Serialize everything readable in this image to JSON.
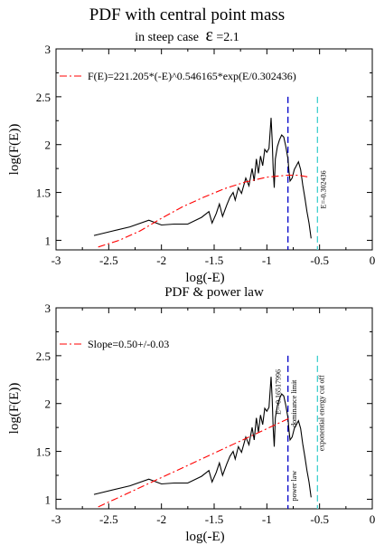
{
  "figure": {
    "title": "PDF with central point mass",
    "subtitle_prefix": "in steep case",
    "subtitle_symbol": "ε",
    "subtitle_suffix": "=2.1"
  },
  "chart_data": [
    {
      "type": "line",
      "title": "",
      "xlabel": "log(-E)",
      "ylabel": "log(F(E))",
      "xlim": [
        -3,
        0
      ],
      "ylim": [
        0.9,
        3
      ],
      "xticks": [
        -3,
        -2.5,
        -2,
        -1.5,
        -1,
        -0.5,
        0
      ],
      "xtick_labels": [
        "-3",
        "-2.5",
        "-2",
        "-1.5",
        "-1",
        "-0.5",
        "0"
      ],
      "yticks": [
        1,
        1.5,
        2,
        2.5,
        3
      ],
      "ytick_labels": [
        "1",
        "1.5",
        "2",
        "2.5",
        "3"
      ],
      "legend": {
        "position": "top-left",
        "entries": [
          "F(E)=221.205*(-E)^0.546165*exp(E/0.302436)"
        ]
      },
      "series": [
        {
          "name": "",
          "color": "#000000",
          "style": "solid",
          "x": [
            -2.64,
            -2.3,
            -2.12,
            -2.0,
            -1.88,
            -1.75,
            -1.62,
            -1.55,
            -1.52,
            -1.48,
            -1.45,
            -1.42,
            -1.38,
            -1.35,
            -1.32,
            -1.3,
            -1.27,
            -1.24,
            -1.2,
            -1.17,
            -1.14,
            -1.12,
            -1.1,
            -1.08,
            -1.06,
            -1.04,
            -1.02,
            -1.0,
            -0.98,
            -0.96,
            -0.95,
            -0.94,
            -0.93,
            -0.92,
            -0.9,
            -0.88,
            -0.86,
            -0.84,
            -0.82,
            -0.8,
            -0.79,
            -0.78,
            -0.76,
            -0.74,
            -0.72,
            -0.7,
            -0.68,
            -0.66,
            -0.64,
            -0.62,
            -0.6,
            -0.58
          ],
          "y": [
            1.05,
            1.14,
            1.21,
            1.16,
            1.17,
            1.17,
            1.24,
            1.3,
            1.18,
            1.28,
            1.38,
            1.25,
            1.37,
            1.45,
            1.5,
            1.42,
            1.55,
            1.49,
            1.65,
            1.57,
            1.75,
            1.62,
            1.85,
            1.7,
            1.88,
            1.78,
            1.95,
            1.92,
            1.96,
            2.28,
            2.05,
            1.75,
            1.55,
            1.85,
            1.98,
            2.05,
            2.1,
            2.08,
            1.98,
            1.85,
            1.72,
            1.62,
            1.65,
            1.74,
            1.78,
            1.82,
            1.74,
            1.58,
            1.45,
            1.3,
            1.18,
            1.02
          ]
        },
        {
          "name": "F(E)=221.205*(-E)^0.546165*exp(E/0.302436)",
          "color": "#ff0000",
          "style": "dash-dot",
          "x": [
            -2.6,
            -2.4,
            -2.2,
            -2.0,
            -1.8,
            -1.6,
            -1.4,
            -1.2,
            -1.0,
            -0.8,
            -0.7,
            -0.6
          ],
          "y": [
            0.93,
            1.0,
            1.1,
            1.23,
            1.35,
            1.45,
            1.54,
            1.61,
            1.66,
            1.68,
            1.68,
            1.66
          ]
        }
      ],
      "vlines": [
        {
          "x": -0.8,
          "color": "#0000c8"
        },
        {
          "x": -0.52,
          "color": "#40d0d0"
        }
      ],
      "annotations": [
        {
          "text": "E=-0.302436",
          "x": -0.44,
          "y": 1.53
        }
      ]
    },
    {
      "type": "line",
      "title": "PDF & power law",
      "xlabel": "log(-E)",
      "ylabel": "log(F(E))",
      "xlim": [
        -3,
        0
      ],
      "ylim": [
        0.9,
        3
      ],
      "xticks": [
        -3,
        -2.5,
        -2,
        -1.5,
        -1,
        -0.5,
        0
      ],
      "xtick_labels": [
        "-3",
        "-2.5",
        "-2",
        "-1.5",
        "-1",
        "-0.5",
        "0"
      ],
      "yticks": [
        1,
        1.5,
        2,
        2.5,
        3
      ],
      "ytick_labels": [
        "1",
        "1.5",
        "2",
        "2.5",
        "3"
      ],
      "legend": {
        "position": "top-left",
        "entries": [
          "Slope=0.50+/-0.03"
        ]
      },
      "series": [
        {
          "name": "",
          "color": "#000000",
          "style": "solid",
          "x": [
            -2.64,
            -2.3,
            -2.12,
            -2.0,
            -1.88,
            -1.75,
            -1.62,
            -1.55,
            -1.52,
            -1.48,
            -1.45,
            -1.42,
            -1.38,
            -1.35,
            -1.32,
            -1.3,
            -1.27,
            -1.24,
            -1.2,
            -1.17,
            -1.14,
            -1.12,
            -1.1,
            -1.08,
            -1.06,
            -1.04,
            -1.02,
            -1.0,
            -0.98,
            -0.96,
            -0.95,
            -0.94,
            -0.93,
            -0.92,
            -0.9,
            -0.88,
            -0.86,
            -0.84,
            -0.82,
            -0.8,
            -0.79,
            -0.78,
            -0.76,
            -0.74,
            -0.72,
            -0.7,
            -0.68,
            -0.66,
            -0.64,
            -0.62,
            -0.6,
            -0.58
          ],
          "y": [
            1.05,
            1.14,
            1.21,
            1.16,
            1.17,
            1.17,
            1.24,
            1.3,
            1.18,
            1.28,
            1.38,
            1.25,
            1.37,
            1.45,
            1.5,
            1.42,
            1.55,
            1.49,
            1.65,
            1.57,
            1.75,
            1.62,
            1.85,
            1.7,
            1.88,
            1.78,
            1.95,
            1.92,
            1.96,
            2.28,
            2.05,
            1.75,
            1.55,
            1.85,
            1.98,
            2.05,
            2.1,
            2.08,
            1.98,
            1.85,
            1.72,
            1.62,
            1.65,
            1.74,
            1.78,
            1.82,
            1.74,
            1.58,
            1.45,
            1.3,
            1.18,
            1.02
          ]
        },
        {
          "name": "Slope=0.50+/-0.03",
          "color": "#ff0000",
          "style": "dash-dot",
          "x": [
            -2.6,
            -0.78
          ],
          "y": [
            0.92,
            1.85
          ]
        }
      ],
      "vlines": [
        {
          "x": -0.8,
          "color": "#0000c8"
        },
        {
          "x": -0.52,
          "color": "#40d0d0"
        }
      ],
      "annotations": [
        {
          "text": "E=-0.16517996",
          "x": -0.87,
          "y": 2.12
        },
        {
          "text": "dominance limit",
          "x": -0.72,
          "y": 2.0
        },
        {
          "text": "power law",
          "x": -0.72,
          "y": 1.14
        },
        {
          "text": "exponential energy cut off",
          "x": -0.46,
          "y": 1.9
        }
      ]
    }
  ]
}
